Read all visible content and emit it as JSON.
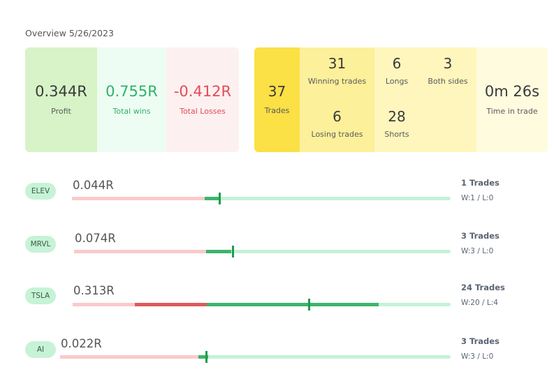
{
  "overview": {
    "title": "Overview 5/26/2023"
  },
  "summary": {
    "profit": {
      "value": "0.344R",
      "label": "Profit"
    },
    "total_wins": {
      "value": "0.755R",
      "label": "Total wins"
    },
    "total_losses": {
      "value": "-0.412R",
      "label": "Total Losses"
    },
    "trades": {
      "value": "37",
      "label": "Trades"
    },
    "winning_trades": {
      "value": "31",
      "label": "Winning trades"
    },
    "losing_trades": {
      "value": "6",
      "label": "Losing trades"
    },
    "longs": {
      "value": "6",
      "label": "Longs"
    },
    "shorts": {
      "value": "28",
      "label": "Shorts"
    },
    "both_sides": {
      "value": "3",
      "label": "Both sides"
    },
    "time_in_trade": {
      "value": "0m 26s",
      "label": "Time in trade"
    }
  },
  "colors": {
    "profit_bg": "#d7f3c7",
    "wins": "#2fb26b",
    "losses": "#e34b57",
    "trades_bg": "#fbe046",
    "pill_bg": "#c6f3d5",
    "bar_win": "#3cb56c",
    "bar_loss": "#de5a5a",
    "marker": "#1f9b4d"
  },
  "tickers": [
    {
      "symbol": "ELEV",
      "r_value": "0.044R",
      "trades": "1 Trades",
      "wl": "W:1 / L:0",
      "bar": {
        "loss_light_frac": 0.35,
        "loss_frac": 0,
        "win_frac": 0.04,
        "marker_frac": 0.39
      }
    },
    {
      "symbol": "MRVL",
      "r_value": "0.074R",
      "trades": "3 Trades",
      "wl": "W:3 / L:0",
      "bar": {
        "loss_light_frac": 0.35,
        "loss_frac": 0,
        "win_frac": 0.067,
        "marker_frac": 0.422
      }
    },
    {
      "symbol": "TSLA",
      "r_value": "0.313R",
      "trades": "24 Trades",
      "wl": "W:20 / L:4",
      "bar": {
        "loss_light_frac": 0.165,
        "loss_frac": 0.19,
        "win_frac": 0.455,
        "marker_frac": 0.625
      }
    },
    {
      "symbol": "AI",
      "r_value": "0.022R",
      "trades": "3 Trades",
      "wl": "W:3 / L:0",
      "bar": {
        "loss_light_frac": 0.355,
        "loss_frac": 0,
        "win_frac": 0.025,
        "marker_frac": 0.375
      }
    }
  ]
}
